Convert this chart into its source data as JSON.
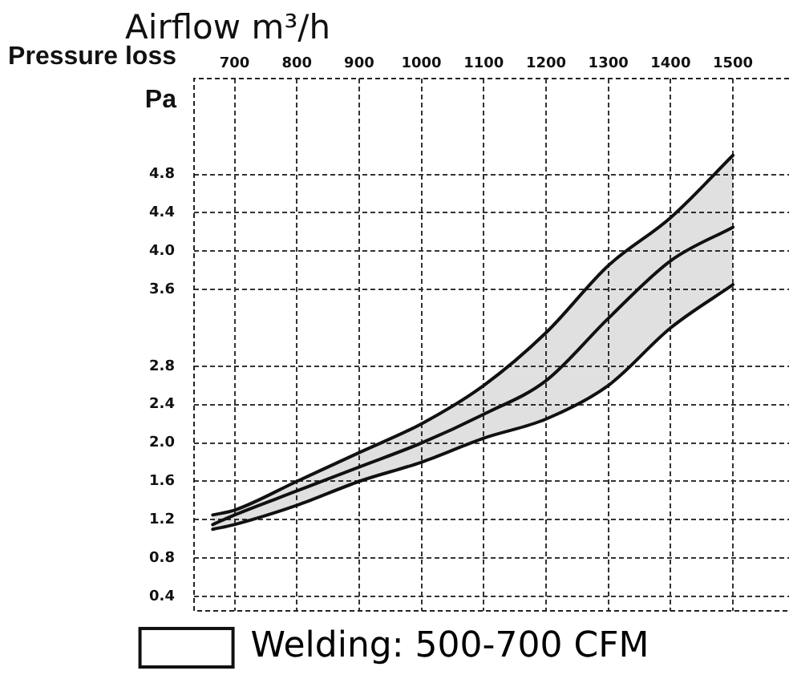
{
  "chart_data": {
    "type": "line",
    "xlabel": "Airflow m³/h",
    "ylabel": "Pressure loss\nPa",
    "x": [
      665,
      700,
      800,
      900,
      1000,
      1100,
      1200,
      1300,
      1400,
      1500
    ],
    "series": [
      {
        "color": "#111111",
        "values": [
          1.25,
          1.3,
          1.6,
          1.9,
          2.2,
          2.6,
          3.15,
          3.85,
          4.35,
          5.0
        ]
      },
      {
        "name": "Welding: 500-700 CFM",
        "color": "#111111",
        "values": [
          1.15,
          1.25,
          1.5,
          1.75,
          2.0,
          2.3,
          2.65,
          3.3,
          3.9,
          4.25
        ],
        "lower": [
          1.1,
          1.15,
          1.35,
          1.6,
          1.8,
          2.05,
          2.25,
          2.6,
          3.2,
          3.65
        ],
        "upper": [
          1.25,
          1.3,
          1.6,
          1.9,
          2.2,
          2.6,
          3.15,
          3.85,
          4.35,
          5.0
        ]
      },
      {
        "color": "#111111",
        "values": [
          1.1,
          1.15,
          1.35,
          1.6,
          1.8,
          2.05,
          2.25,
          2.6,
          3.2,
          3.65
        ]
      }
    ],
    "xlim": [
      635,
      1590
    ],
    "xticks": [
      700,
      800,
      900,
      1000,
      1100,
      1200,
      1300,
      1400,
      1500
    ],
    "ylim": [
      0.25,
      5.8
    ],
    "yticks": [
      0.4,
      0.8,
      1.2,
      1.6,
      {
        "value": 2,
        "label": "2.0"
      },
      2.4,
      2.8,
      3.6,
      {
        "value": 4,
        "label": "4.0"
      },
      4.4,
      4.8
    ],
    "grid": true,
    "legend": "bottom"
  }
}
